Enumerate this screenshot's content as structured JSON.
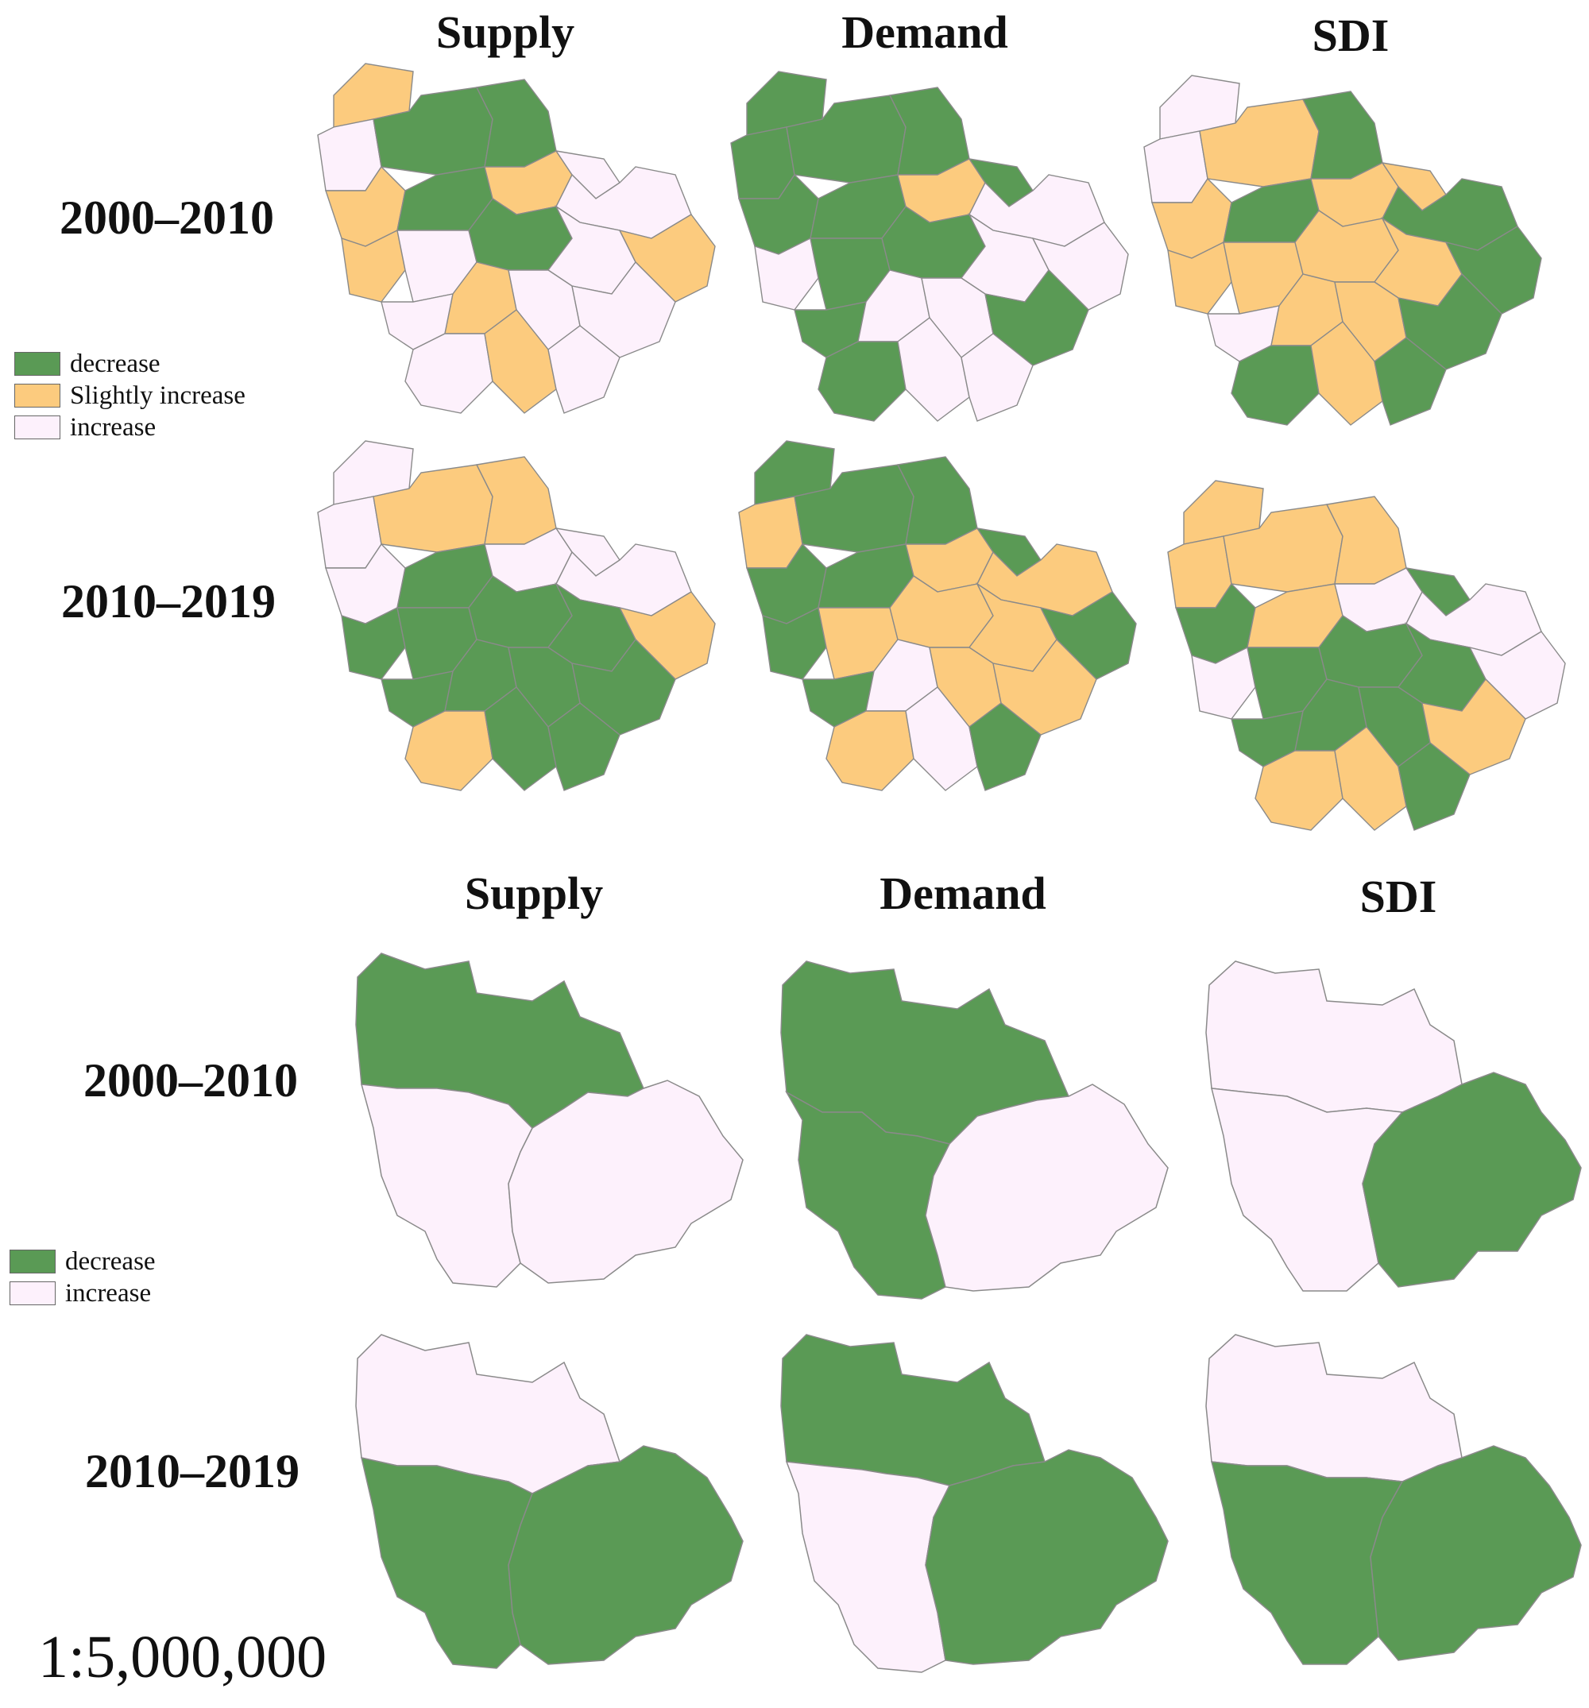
{
  "colors": {
    "decrease": "#5a9a55",
    "slightly_increase": "#fccb7e",
    "increase": "#fdf1fc",
    "border": "#8a8a8a"
  },
  "top_section": {
    "columns": [
      "Supply",
      "Demand",
      "SDI"
    ],
    "rows": [
      "2000–2010",
      "2010–2019"
    ],
    "legend": [
      {
        "label": "decrease",
        "class": "decrease"
      },
      {
        "label": "Slightly increase",
        "class": "slightly_increase"
      },
      {
        "label": "increase",
        "class": "increase"
      }
    ]
  },
  "bottom_section": {
    "columns": [
      "Supply",
      "Demand",
      "SDI"
    ],
    "rows": [
      "2000–2010",
      "2010–2019"
    ],
    "legend": [
      {
        "label": "decrease",
        "class": "decrease"
      },
      {
        "label": "increase",
        "class": "increase"
      }
    ]
  },
  "scale_text": "1:5,000,000"
}
